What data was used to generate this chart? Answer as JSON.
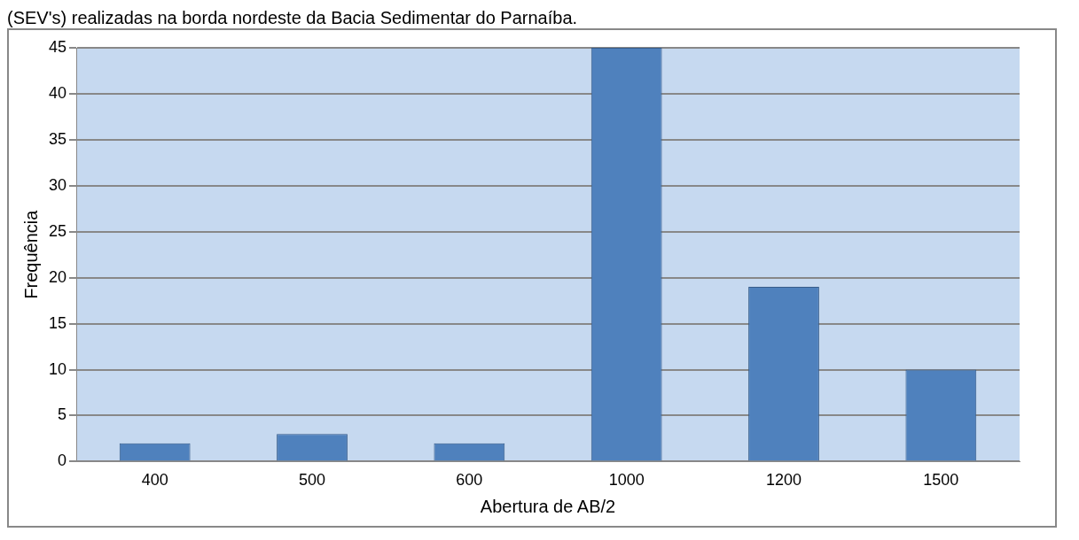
{
  "chart_data": {
    "type": "bar",
    "xlabel": "Abertura de AB/2",
    "ylabel": "Frequência",
    "annotations": [
      "(SEV's) realizadas na borda nordeste da Bacia Sedimentar do Parnaíba."
    ],
    "categories": [
      "400",
      "500",
      "600",
      "1000",
      "1200",
      "1500"
    ],
    "values": [
      2,
      3,
      2,
      45,
      19,
      10
    ],
    "color": "#4f81bd",
    "ylim": [
      0,
      45
    ],
    "yticks": [
      0,
      5,
      10,
      15,
      20,
      25,
      30,
      35,
      40,
      45
    ],
    "grid": "y",
    "legend": false
  }
}
